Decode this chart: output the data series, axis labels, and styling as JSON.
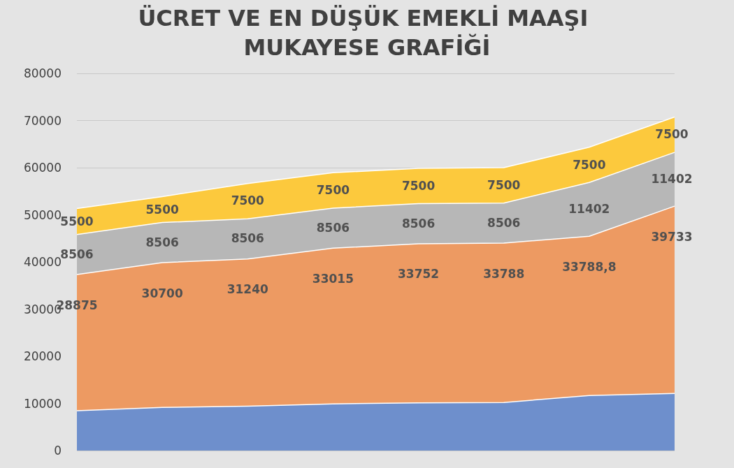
{
  "chart_data": {
    "type": "area",
    "stacked": true,
    "title": "ÜCRET VE EN DÜŞÜK EMEKLİ MAAŞI MUKAYESE GRAFİĞİ",
    "categories": [
      null,
      null,
      null,
      null,
      null,
      null,
      null,
      null
    ],
    "ylim": [
      0,
      80000
    ],
    "yticks": [
      0,
      10000,
      20000,
      30000,
      40000,
      50000,
      60000,
      70000,
      80000
    ],
    "grid": "y",
    "series": [
      {
        "color": "#6e8fcc",
        "values": [
          8450,
          9150,
          9400,
          9900,
          10100,
          10200,
          11650,
          12100
        ]
      },
      {
        "color": "#ed9a62",
        "values": [
          28875,
          30700,
          31240,
          33015,
          33752,
          33788,
          33788.8,
          39733
        ],
        "value_labels": [
          "28875",
          "30700",
          "31240",
          "33015",
          "33752",
          "33788",
          "33788,8",
          "39733"
        ]
      },
      {
        "color": "#b7b7b7",
        "values": [
          8506,
          8506,
          8506,
          8506,
          8506,
          8506,
          11402,
          11402
        ],
        "value_labels": [
          "8506",
          "8506",
          "8506",
          "8506",
          "8506",
          "8506",
          "11402",
          "11402"
        ]
      },
      {
        "color": "#fcc93d",
        "values": [
          5500,
          5500,
          7500,
          7500,
          7500,
          7500,
          7500,
          7500
        ],
        "value_labels": [
          "5500",
          "5500",
          "7500",
          "7500",
          "7500",
          "7500",
          "7500",
          "7500"
        ]
      }
    ]
  }
}
